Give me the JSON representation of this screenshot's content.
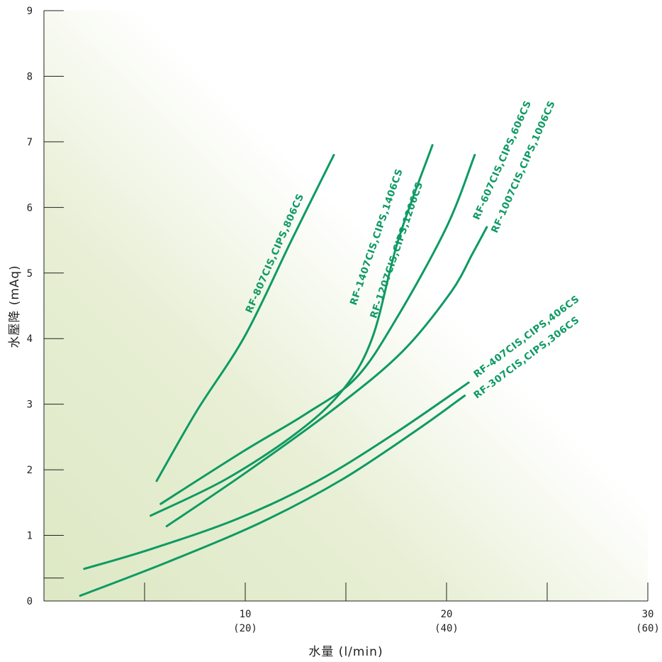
{
  "chart_data": {
    "type": "line",
    "title": "",
    "xlabel": "水量 (l/min)",
    "ylabel": "水壓降 (mAq)",
    "xlim": [
      0,
      30
    ],
    "ylim": [
      0,
      9
    ],
    "x_ticks": [
      {
        "value": 10,
        "label": "10",
        "sub": "(20)"
      },
      {
        "value": 20,
        "label": "20",
        "sub": "(40)"
      },
      {
        "value": 30,
        "label": "30",
        "sub": "(60)"
      }
    ],
    "y_ticks": [
      {
        "value": 0,
        "label": "0"
      },
      {
        "value": 1,
        "label": "1"
      },
      {
        "value": 2,
        "label": "2"
      },
      {
        "value": 3,
        "label": "3"
      },
      {
        "value": 4,
        "label": "4"
      },
      {
        "value": 5,
        "label": "5"
      },
      {
        "value": 6,
        "label": "6"
      },
      {
        "value": 7,
        "label": "7"
      },
      {
        "value": 8,
        "label": "8"
      },
      {
        "value": 9,
        "label": "9"
      }
    ],
    "minor_x_ticks": [
      5,
      15,
      25
    ],
    "minor_y_ticks": [
      0.35
    ],
    "grid": false,
    "series": [
      {
        "name": "RF-807CIS,CIPS,806CS",
        "points": [
          [
            5.6,
            1.83
          ],
          [
            7.6,
            2.9
          ],
          [
            10,
            4.05
          ],
          [
            12.3,
            5.5
          ],
          [
            14.4,
            6.8
          ]
        ]
      },
      {
        "name": "RF-1407CIS,CIPS,1406CS",
        "points": [
          [
            5.8,
            1.48
          ],
          [
            10,
            2.3
          ],
          [
            13,
            2.85
          ],
          [
            15.5,
            3.4
          ],
          [
            17.5,
            4.3
          ],
          [
            20,
            5.7
          ],
          [
            21.4,
            6.8
          ]
        ]
      },
      {
        "name": "RF-1207CIS,CIPS,1206CS",
        "points": [
          [
            5.3,
            1.3
          ],
          [
            9,
            1.85
          ],
          [
            12.5,
            2.55
          ],
          [
            14.8,
            3.2
          ],
          [
            16.3,
            4.0
          ],
          [
            17.6,
            5.5
          ],
          [
            19.3,
            6.95
          ]
        ]
      },
      {
        "name": "RF-607CIS,CIPS,606CS",
        "points": [
          [
            6.1,
            1.14
          ],
          [
            10,
            1.95
          ],
          [
            14.5,
            2.95
          ],
          [
            17.8,
            3.8
          ],
          [
            20.2,
            4.7
          ],
          [
            21.3,
            5.3
          ],
          [
            22,
            5.7
          ]
        ]
      },
      {
        "name": "RF-1007CIS,CIPS,1006CS",
        "points": [
          [
            2.0,
            0.49
          ],
          [
            5.2,
            0.78
          ],
          [
            9.6,
            1.25
          ],
          [
            13.6,
            1.83
          ],
          [
            17.4,
            2.55
          ],
          [
            21.1,
            3.33
          ]
        ]
      },
      {
        "name": "RF-407CIS,CIPS,406CS",
        "points": [
          [
            1.8,
            0.08
          ],
          [
            6.2,
            0.6
          ],
          [
            10.8,
            1.2
          ],
          [
            14.8,
            1.85
          ],
          [
            18.5,
            2.6
          ],
          [
            20.9,
            3.13
          ]
        ]
      },
      {
        "name": "RF-307CIS,CIPS,306CS",
        "points": [
          [
            14.2,
            6.8
          ],
          [
            10.2,
            4.05
          ]
        ]
      }
    ],
    "labels": [
      {
        "series": 0,
        "text": "RF-807CIS,CIPS,806CS",
        "x": 10.3,
        "y": 4.38,
        "angle": -66
      },
      {
        "series": 1,
        "text": "RF-1407CIS,CIPS,1406CS",
        "x": 15.5,
        "y": 4.5,
        "angle": -71
      },
      {
        "series": 2,
        "text": "RF-1207CIS,CIPS,1206CS",
        "x": 16.5,
        "y": 4.3,
        "angle": -71
      },
      {
        "series": 3,
        "text": "RF-607CIS,CIPS,606CS",
        "x": 21.6,
        "y": 5.8,
        "angle": -66
      },
      {
        "series": 4,
        "text": "RF-1007CIS,CIPS,1006CS",
        "x": 22.5,
        "y": 5.6,
        "angle": -66
      },
      {
        "series": 5,
        "text": "RF-407CIS,CIPS,406CS",
        "x": 21.5,
        "y": 3.4,
        "angle": -37
      },
      {
        "series": 6,
        "text": "RF-307CIS,CIPS,306CS",
        "x": 21.5,
        "y": 3.08,
        "angle": -37
      }
    ]
  }
}
